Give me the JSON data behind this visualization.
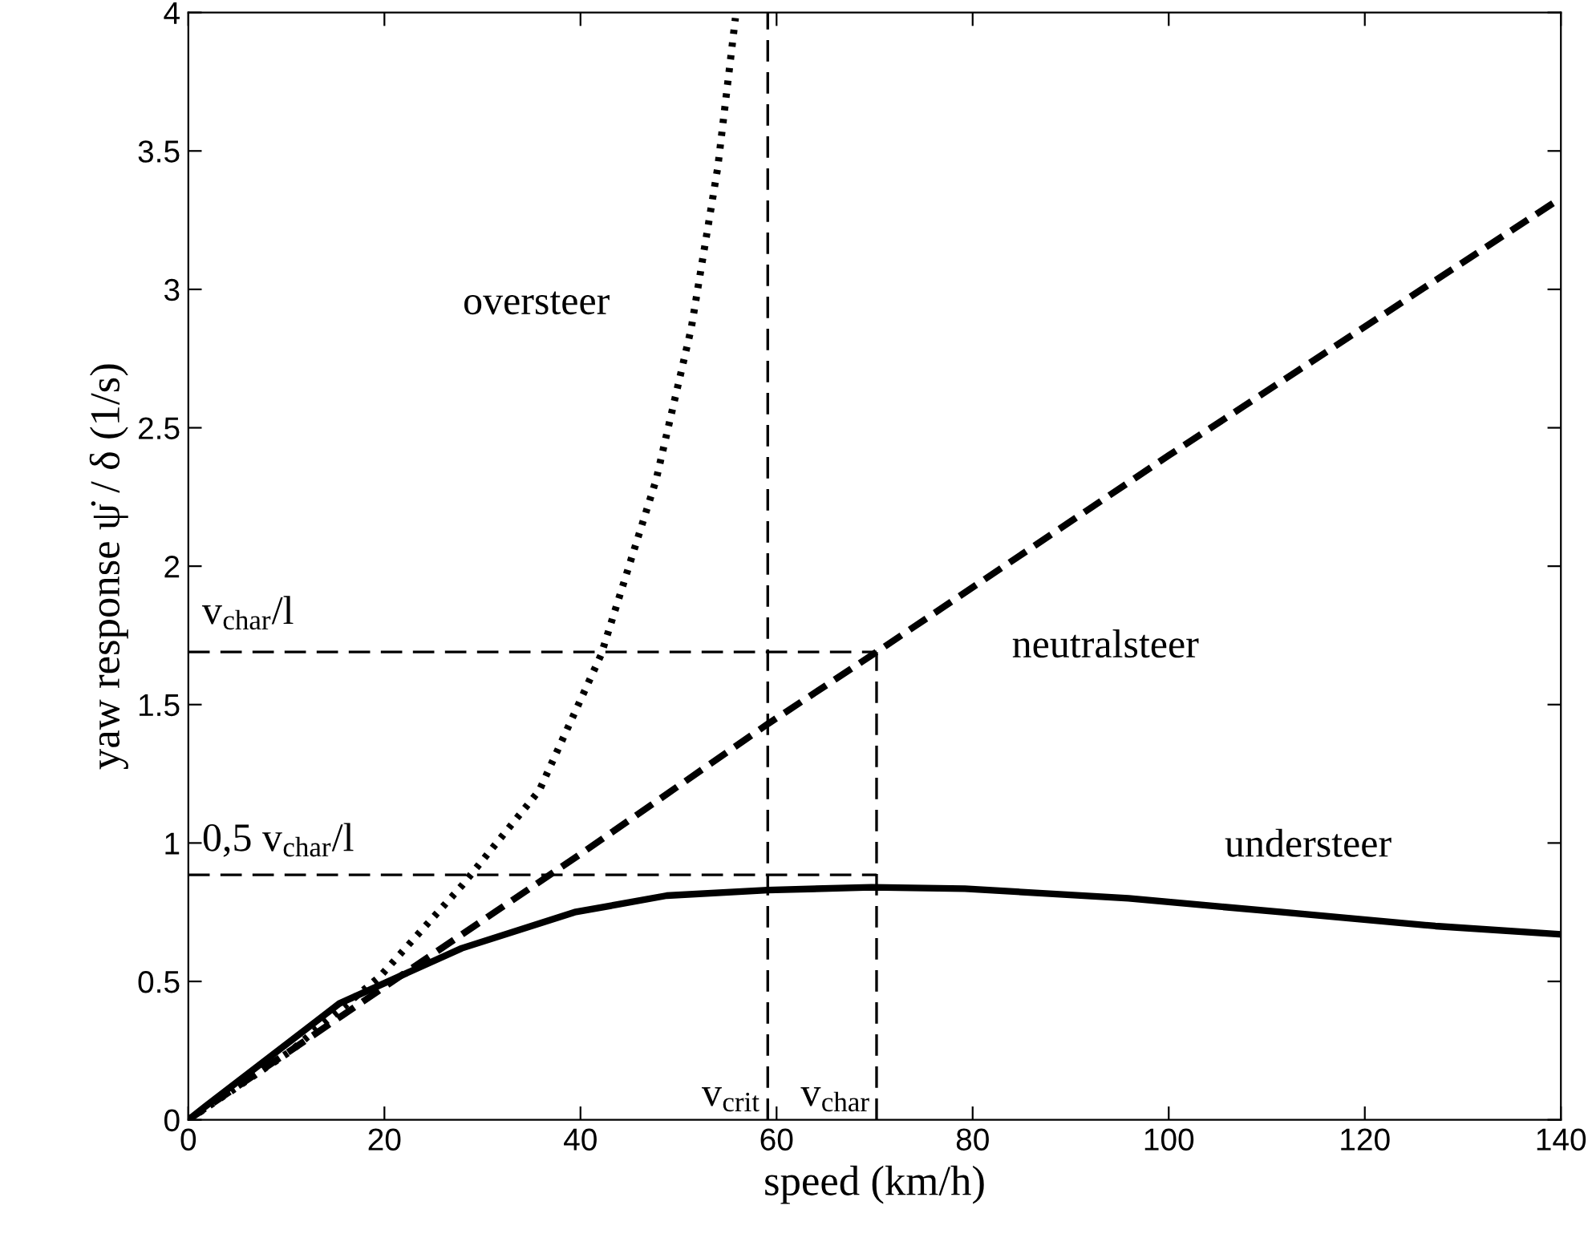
{
  "chart_data": {
    "type": "line",
    "xlabel": "speed (km/h)",
    "ylabel": "yaw response ψ̇ / δ (1/s)",
    "xlim": [
      0,
      140
    ],
    "ylim": [
      0,
      4
    ],
    "xticks": [
      0,
      20,
      40,
      60,
      80,
      100,
      120,
      140
    ],
    "yticks": [
      0,
      0.5,
      1,
      1.5,
      2,
      2.5,
      3,
      3.5,
      4
    ],
    "grid": false,
    "legend": false,
    "series": [
      {
        "name": "understeer",
        "color": "#000000",
        "line_style": "solid",
        "x": [
          0,
          1.8,
          15.4,
          27.9,
          39.4,
          48.8,
          59.1,
          69.7,
          79.2,
          95.9,
          111.6,
          127.2,
          140
        ],
        "values": [
          0,
          0.05,
          0.42,
          0.62,
          0.75,
          0.81,
          0.83,
          0.84,
          0.835,
          0.8,
          0.75,
          0.7,
          0.67
        ]
      },
      {
        "name": "neutralsteer",
        "color": "#000000",
        "line_style": "dashed",
        "x": [
          0,
          20,
          40,
          59.1,
          70.2,
          100,
          140
        ],
        "values": [
          0,
          0.48,
          0.96,
          1.43,
          1.69,
          2.4,
          3.33
        ]
      },
      {
        "name": "oversteer",
        "color": "#000000",
        "line_style": "dotted",
        "x": [
          0,
          10.5,
          19.6,
          28,
          35.8,
          42.1,
          47.7,
          51.3,
          54,
          55.8
        ],
        "values": [
          0,
          0.25,
          0.52,
          0.85,
          1.19,
          1.68,
          2.31,
          2.86,
          3.44,
          3.98
        ]
      },
      {
        "color": "#000000",
        "line_style": "dashed",
        "x": [
          0,
          70.2
        ],
        "values": [
          1.69,
          1.69
        ]
      },
      {
        "color": "#000000",
        "line_style": "dashed",
        "x": [
          0,
          70.2
        ],
        "values": [
          0.885,
          0.885
        ]
      },
      {
        "color": "#000000",
        "line_style": "dashed",
        "x": [
          70.2,
          70.2
        ],
        "values": [
          0,
          1.69
        ]
      },
      {
        "color": "#000000",
        "line_style": "dashed",
        "x": [
          59.1,
          59.1
        ],
        "values": [
          0,
          4
        ]
      }
    ],
    "annotations": [
      "v$_{char}$/l",
      "0,5 v$_{char}$/l",
      "v$_{crit}$",
      "v$_{char}$"
    ]
  }
}
